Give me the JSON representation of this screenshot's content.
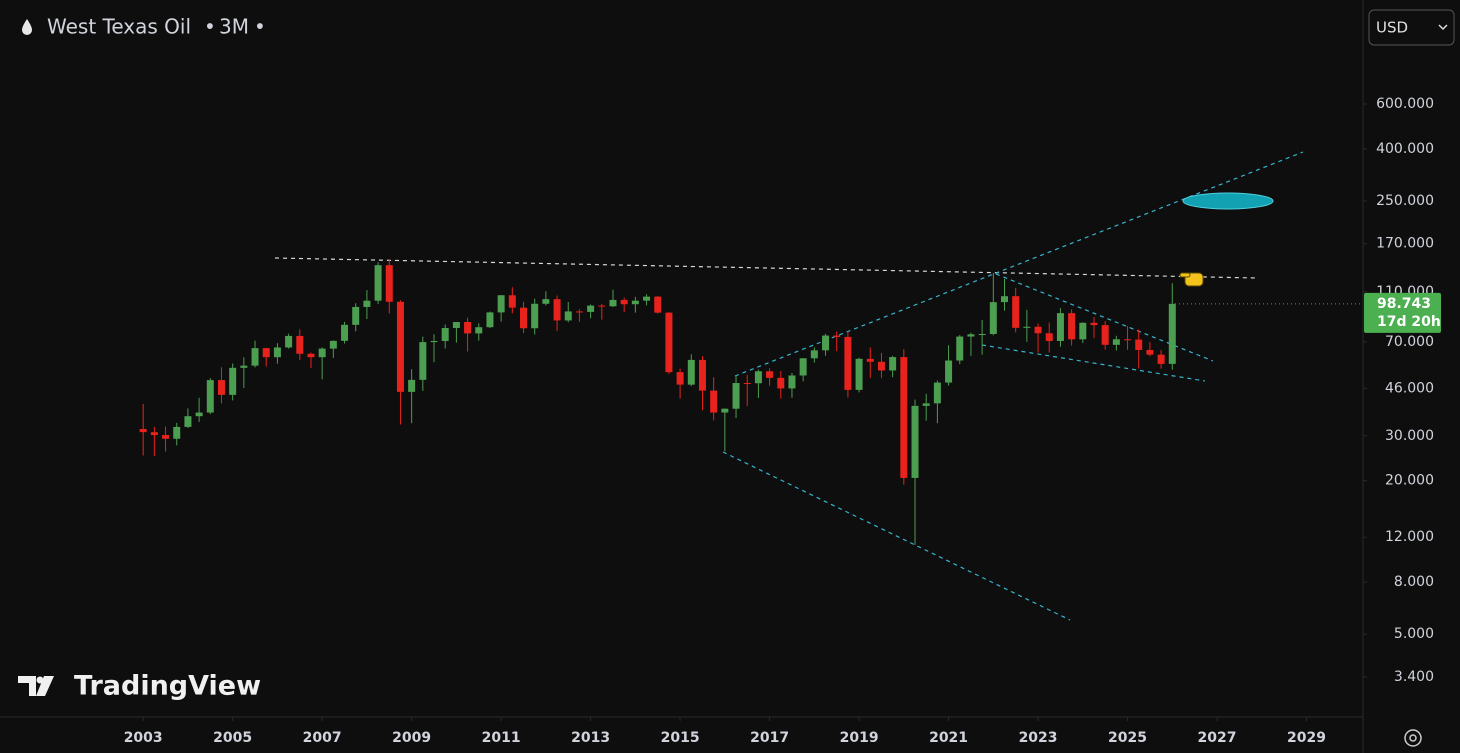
{
  "chart_data": {
    "type": "candlestick",
    "symbol": "West Texas Oil",
    "interval": "3M",
    "currency": "USD",
    "brand": "TradingView",
    "x": [
      2003,
      2003.25,
      2003.5,
      2003.75,
      2004,
      2004.25,
      2004.5,
      2004.75,
      2005,
      2005.25,
      2005.5,
      2005.75,
      2006,
      2006.25,
      2006.5,
      2006.75,
      2007,
      2007.25,
      2007.5,
      2007.75,
      2008,
      2008.25,
      2008.5,
      2008.75,
      2009,
      2009.25,
      2009.5,
      2009.75,
      2010,
      2010.25,
      2010.5,
      2010.75,
      2011,
      2011.25,
      2011.5,
      2011.75,
      2012,
      2012.25,
      2012.5,
      2012.75,
      2013,
      2013.25,
      2013.5,
      2013.75,
      2014,
      2014.25,
      2014.5,
      2014.75,
      2015,
      2015.25,
      2015.5,
      2015.75,
      2016,
      2016.25,
      2016.5,
      2016.75,
      2017,
      2017.25,
      2017.5,
      2017.75,
      2018,
      2018.25,
      2018.5,
      2018.75,
      2019,
      2019.25,
      2019.5,
      2019.75,
      2020,
      2020.25,
      2020.5,
      2020.75,
      2021,
      2021.25,
      2021.5,
      2021.75,
      2022,
      2022.25,
      2022.5,
      2022.75,
      2023,
      2023.25,
      2023.5,
      2023.75,
      2024,
      2024.25,
      2024.5,
      2024.75,
      2025,
      2025.25,
      2025.5,
      2025.75,
      2026
    ],
    "open": [
      31.9,
      31,
      30.2,
      29.2,
      32.5,
      35.8,
      37,
      49.6,
      43.4,
      55.4,
      56.5,
      66.2,
      61,
      66.6,
      73.9,
      62.9,
      61,
      65.9,
      70.7,
      81.7,
      96,
      101.6,
      140,
      100.6,
      44.6,
      49.7,
      69.9,
      70.6,
      79.4,
      83.8,
      75.6,
      79.97,
      91.4,
      106.7,
      95.4,
      79.2,
      98.8,
      103,
      85,
      92.2,
      91.8,
      97.2,
      96.6,
      102.3,
      98.4,
      101.6,
      105.4,
      91.2,
      53.3,
      47.6,
      59.5,
      45.1,
      37,
      38.3,
      48.3,
      48.2,
      53.7,
      50.6,
      46,
      51.7,
      60.4,
      64.9,
      74.15,
      73.25,
      45.4,
      60.1,
      58.5,
      54.1,
      61.06,
      20.5,
      39.3,
      40.2,
      48.5,
      59.2,
      73.5,
      75,
      75.2,
      100.3,
      105.8,
      79.5,
      80.3,
      75.7,
      70.6,
      90.8,
      71.65,
      83.2,
      81.5,
      68.2,
      71.7,
      71.5,
      65.1,
      62.4,
      57.4
    ],
    "high": [
      39.99,
      32.5,
      32.6,
      33.7,
      38.4,
      42.3,
      50.5,
      55.7,
      57.6,
      60.9,
      70.8,
      66.3,
      69.2,
      75.4,
      78.4,
      63.6,
      66.7,
      70.9,
      83.9,
      99.3,
      111.8,
      143.7,
      147.3,
      102,
      54.7,
      73.4,
      75,
      82,
      83.9,
      87.2,
      82.9,
      92.1,
      107,
      114.8,
      100.6,
      103.4,
      110.6,
      106.4,
      100.4,
      94,
      98.2,
      98.7,
      112.2,
      104.6,
      105.2,
      107.7,
      105.8,
      91.6,
      55,
      62.6,
      61.6,
      50.9,
      38.4,
      51.7,
      52,
      54.5,
      55.2,
      53.8,
      52.9,
      60.5,
      66.7,
      75.3,
      76.9,
      76.9,
      60.7,
      66.6,
      63.4,
      61.8,
      65.6,
      41.6,
      43.8,
      49.4,
      67.9,
      74.5,
      76.1,
      85.4,
      130.5,
      123.7,
      114,
      93.6,
      82.7,
      83.5,
      95,
      93.9,
      83.6,
      87.7,
      84.5,
      74,
      80.8,
      78.4,
      70,
      65,
      119
    ],
    "low": [
      25.1,
      25,
      26,
      27.5,
      32.2,
      34,
      36.5,
      40.2,
      41.3,
      46.2,
      55.6,
      56.1,
      57.5,
      65.9,
      59.5,
      55.3,
      49.9,
      60.6,
      69,
      77,
      86.1,
      98.7,
      90.5,
      33.2,
      33.6,
      45,
      58.3,
      66,
      69.5,
      64.2,
      70.8,
      79.4,
      84.1,
      90.6,
      75.7,
      74.9,
      97.3,
      77.3,
      83.6,
      84,
      86.7,
      85.6,
      96,
      91.8,
      91.2,
      97.4,
      90.4,
      52.4,
      42,
      47,
      37.8,
      34.5,
      26.05,
      35.2,
      39.2,
      42.2,
      47.1,
      42,
      42.3,
      49.1,
      58.1,
      61.8,
      64.4,
      42.4,
      44.4,
      50.6,
      50.5,
      50.9,
      19.3,
      11.2,
      34.4,
      33.6,
      47.2,
      57.3,
      61.7,
      62.4,
      74.3,
      92.9,
      76.3,
      70.1,
      63.6,
      63.6,
      67,
      67.7,
      69.3,
      72.5,
      65.3,
      64.8,
      65.2,
      55.1,
      61.5,
      55,
      54.5
    ],
    "close": [
      31,
      30.2,
      29.2,
      32.5,
      35.8,
      37,
      49.6,
      43.4,
      55.4,
      56.5,
      66.2,
      61,
      66.6,
      73.9,
      62.9,
      61,
      65.9,
      70.7,
      81.7,
      96,
      101.6,
      140,
      100.6,
      44.6,
      49.7,
      69.9,
      70.6,
      79.4,
      83.8,
      75.6,
      79.97,
      91.4,
      106.7,
      95.4,
      79.2,
      98.8,
      103,
      85,
      92.2,
      91.8,
      97.2,
      96.6,
      102.3,
      98.4,
      101.6,
      105.4,
      91.2,
      53.3,
      47.6,
      59.5,
      45.1,
      37,
      38.3,
      48.3,
      48.2,
      53.7,
      50.6,
      46,
      51.7,
      60.4,
      64.9,
      74.15,
      73.25,
      45.4,
      60.1,
      58.5,
      54.1,
      61.06,
      20.5,
      39.3,
      40.2,
      48.5,
      59.2,
      73.5,
      75,
      75.2,
      100.3,
      105.8,
      79.5,
      80.3,
      75.7,
      70.6,
      90.8,
      71.65,
      83.2,
      81.5,
      68.2,
      71.7,
      71.5,
      65.1,
      62.4,
      57.4,
      98.743
    ],
    "up_color": "#4c9e50",
    "down_color": "#e8221c",
    "last_price": {
      "value": 98.743,
      "label": "98.743"
    },
    "countdown": "17d 20h",
    "log_scale": true,
    "xlim": [
      1999.8,
      2030.24
    ],
    "xticks": [
      2003,
      2005,
      2007,
      2009,
      2011,
      2013,
      2015,
      2017,
      2019,
      2021,
      2023,
      2025,
      2027,
      2029
    ],
    "ylim": [
      2.41,
      1535
    ],
    "yticks": [
      {
        "value": 600,
        "label": "600.000"
      },
      {
        "value": 400,
        "label": "400.000"
      },
      {
        "value": 250,
        "label": "250.000"
      },
      {
        "value": 170,
        "label": "170.000"
      },
      {
        "value": 110,
        "label": "110.000"
      },
      {
        "value": 70,
        "label": "70.000"
      },
      {
        "value": 46,
        "label": "46.000"
      },
      {
        "value": 30,
        "label": "30.000"
      },
      {
        "value": 20,
        "label": "20.000"
      },
      {
        "value": 12,
        "label": "12.000"
      },
      {
        "value": 8,
        "label": "8.000"
      },
      {
        "value": 5,
        "label": "5.000"
      },
      {
        "value": 3.4,
        "label": "3.400"
      }
    ]
  }
}
